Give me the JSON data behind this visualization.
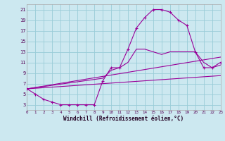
{
  "xlabel": "Windchill (Refroidissement éolien,°C)",
  "bg_color": "#cce8f0",
  "grid_color": "#99ccd8",
  "line_color": "#990099",
  "xlim": [
    0,
    23
  ],
  "ylim": [
    2,
    22
  ],
  "xticks": [
    0,
    1,
    2,
    3,
    4,
    5,
    6,
    7,
    8,
    9,
    10,
    11,
    12,
    13,
    14,
    15,
    16,
    17,
    18,
    19,
    20,
    21,
    22,
    23
  ],
  "yticks": [
    3,
    5,
    7,
    9,
    11,
    13,
    15,
    17,
    19,
    21
  ],
  "curve1_x": [
    0,
    1,
    2,
    3,
    4,
    5,
    6,
    7,
    8,
    9,
    10,
    11,
    12,
    13,
    14,
    15,
    16,
    17,
    18,
    19,
    20,
    21,
    22,
    23
  ],
  "curve1_y": [
    6,
    5,
    4,
    3.5,
    3,
    3,
    3,
    3,
    3,
    7.5,
    10,
    10,
    13.5,
    17.5,
    19.5,
    21,
    21,
    20.5,
    19,
    18,
    13,
    10,
    10,
    11
  ],
  "curve2_x": [
    0,
    9,
    10,
    11,
    12,
    13,
    14,
    15,
    16,
    17,
    18,
    19,
    20,
    21,
    22,
    23
  ],
  "curve2_y": [
    6,
    8,
    9.5,
    10,
    11,
    13.5,
    13.5,
    13,
    12.5,
    13,
    13,
    13,
    13,
    11,
    10,
    10.5
  ],
  "line1_x": [
    0,
    23
  ],
  "line1_y": [
    6,
    12
  ],
  "line2_x": [
    0,
    23
  ],
  "line2_y": [
    6,
    8.5
  ],
  "marker_x": [
    0,
    9,
    10,
    11,
    12,
    13,
    14,
    15,
    16,
    17,
    18,
    19,
    20,
    21,
    22,
    23
  ],
  "marker_y": [
    6,
    8,
    9.5,
    10,
    11,
    13.5,
    13.5,
    13,
    12.5,
    13,
    13,
    13,
    13,
    11,
    10,
    10.5
  ]
}
